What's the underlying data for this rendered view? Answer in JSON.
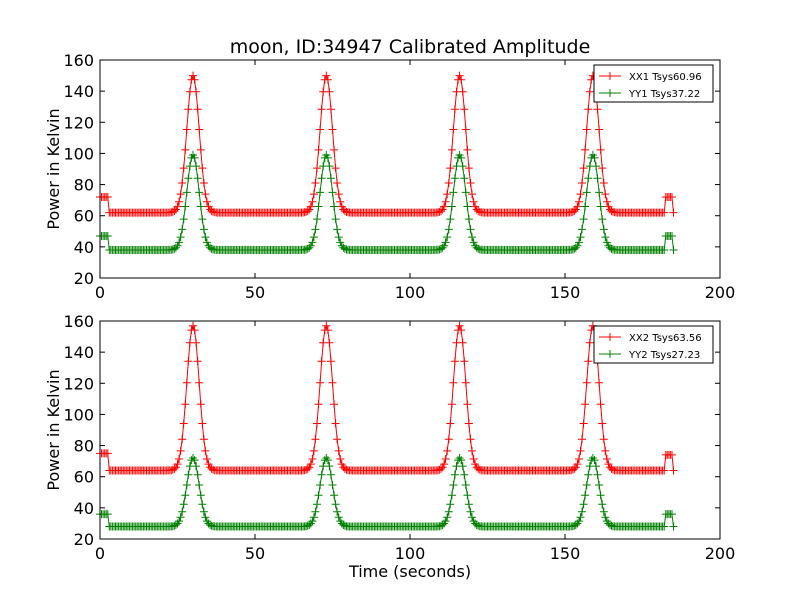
{
  "figure": {
    "title": "moon, ID:34947 Calibrated Amplitude",
    "xlabel": "Time (seconds)"
  },
  "chart_data": [
    {
      "type": "line",
      "ylabel": "Power in Kelvin",
      "xlim": [
        0,
        200
      ],
      "ylim": [
        20,
        160
      ],
      "xticks": [
        "0",
        "50",
        "100",
        "150",
        "200"
      ],
      "yticks": [
        "20",
        "40",
        "60",
        "80",
        "100",
        "120",
        "140",
        "160"
      ],
      "legend_position": "top-right",
      "grid": false,
      "marker": "plus",
      "peak_centers": [
        30,
        73,
        116,
        159
      ],
      "peak_sigma": 2.0,
      "end_bump_center": 183.5,
      "series": [
        {
          "name": "XX1 Tsys60.96",
          "color": "#ff0000",
          "baseline": 62,
          "peak": 150,
          "start_level": 72,
          "end_level": 72
        },
        {
          "name": "YY1 Tsys37.22",
          "color": "#008000",
          "baseline": 38,
          "peak": 99,
          "start_level": 47,
          "end_level": 47
        }
      ]
    },
    {
      "type": "line",
      "ylabel": "Power in Kelvin",
      "xlim": [
        0,
        200
      ],
      "ylim": [
        20,
        160
      ],
      "xticks": [
        "0",
        "50",
        "100",
        "150",
        "200"
      ],
      "yticks": [
        "20",
        "40",
        "60",
        "80",
        "100",
        "120",
        "140",
        "160"
      ],
      "legend_position": "top-right",
      "grid": false,
      "marker": "plus",
      "peak_centers": [
        30,
        73,
        116,
        159
      ],
      "peak_sigma": 2.0,
      "end_bump_center": 183.5,
      "series": [
        {
          "name": "XX2 Tsys63.56",
          "color": "#ff0000",
          "baseline": 64,
          "peak": 157,
          "start_level": 75,
          "end_level": 74
        },
        {
          "name": "YY2 Tsys27.23",
          "color": "#008000",
          "baseline": 28,
          "peak": 72,
          "start_level": 36,
          "end_level": 36
        }
      ]
    }
  ]
}
